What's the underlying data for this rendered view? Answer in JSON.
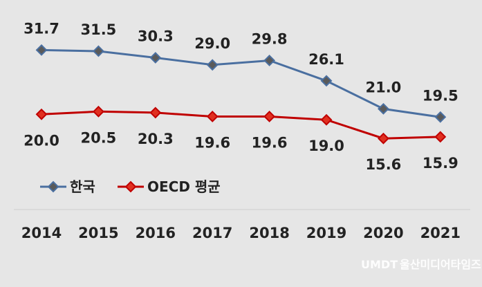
{
  "chart_data": {
    "type": "line",
    "x": [
      "2014",
      "2015",
      "2016",
      "2017",
      "2018",
      "2019",
      "2020",
      "2021"
    ],
    "series": [
      {
        "name": "한국",
        "color": "#4a6fa0",
        "marker": "#5a5a5a",
        "values": [
          31.7,
          31.5,
          30.3,
          29.0,
          29.8,
          26.1,
          21.0,
          19.5
        ],
        "labels": [
          "31.7",
          "31.5",
          "30.3",
          "29.0",
          "29.8",
          "26.1",
          "21.0",
          "19.5"
        ],
        "label_position": "above"
      },
      {
        "name": "OECD 평균",
        "color": "#c00000",
        "marker": "#e03020",
        "values": [
          20.0,
          20.5,
          20.3,
          19.6,
          19.6,
          19.0,
          15.6,
          15.9
        ],
        "labels": [
          "20.0",
          "20.5",
          "20.3",
          "19.6",
          "19.6",
          "19.0",
          "15.6",
          "15.9"
        ],
        "label_position": "below"
      }
    ],
    "legend_position": "bottom-left",
    "grid": false
  },
  "watermark": {
    "brand": "UMDT",
    "name": "울산미디어타임즈"
  }
}
